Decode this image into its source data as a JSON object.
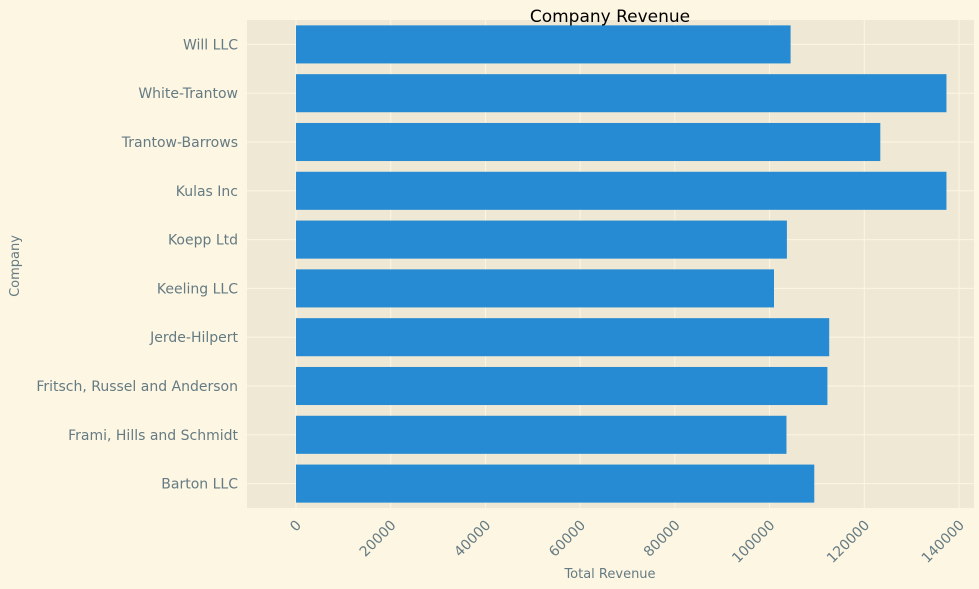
{
  "chart_data": {
    "type": "bar",
    "orientation": "horizontal",
    "title": "Company Revenue",
    "xlabel": "Total Revenue",
    "ylabel": "Company",
    "categories": [
      "Will LLC",
      "White-Trantow",
      "Trantow-Barrows",
      "Kulas Inc",
      "Koepp Ltd",
      "Keeling LLC",
      "Jerde-Hilpert",
      "Fritsch, Russel and Anderson",
      "Frami, Hills and Schmidt",
      "Barton LLC"
    ],
    "values": [
      104438,
      137352,
      123382,
      137352,
      103660,
      100934,
      112591,
      112214,
      103569,
      109438
    ],
    "xlim": [
      0,
      140000
    ],
    "xticks": [
      0,
      20000,
      40000,
      60000,
      80000,
      100000,
      120000,
      140000
    ],
    "grid": true,
    "colors": {
      "bar": "#268bd2",
      "plot_background": "#eee8d5",
      "figure_background": "#fdf6e3",
      "grid": "#fdf6e3",
      "text": "#657b83",
      "title": "#000000"
    }
  }
}
